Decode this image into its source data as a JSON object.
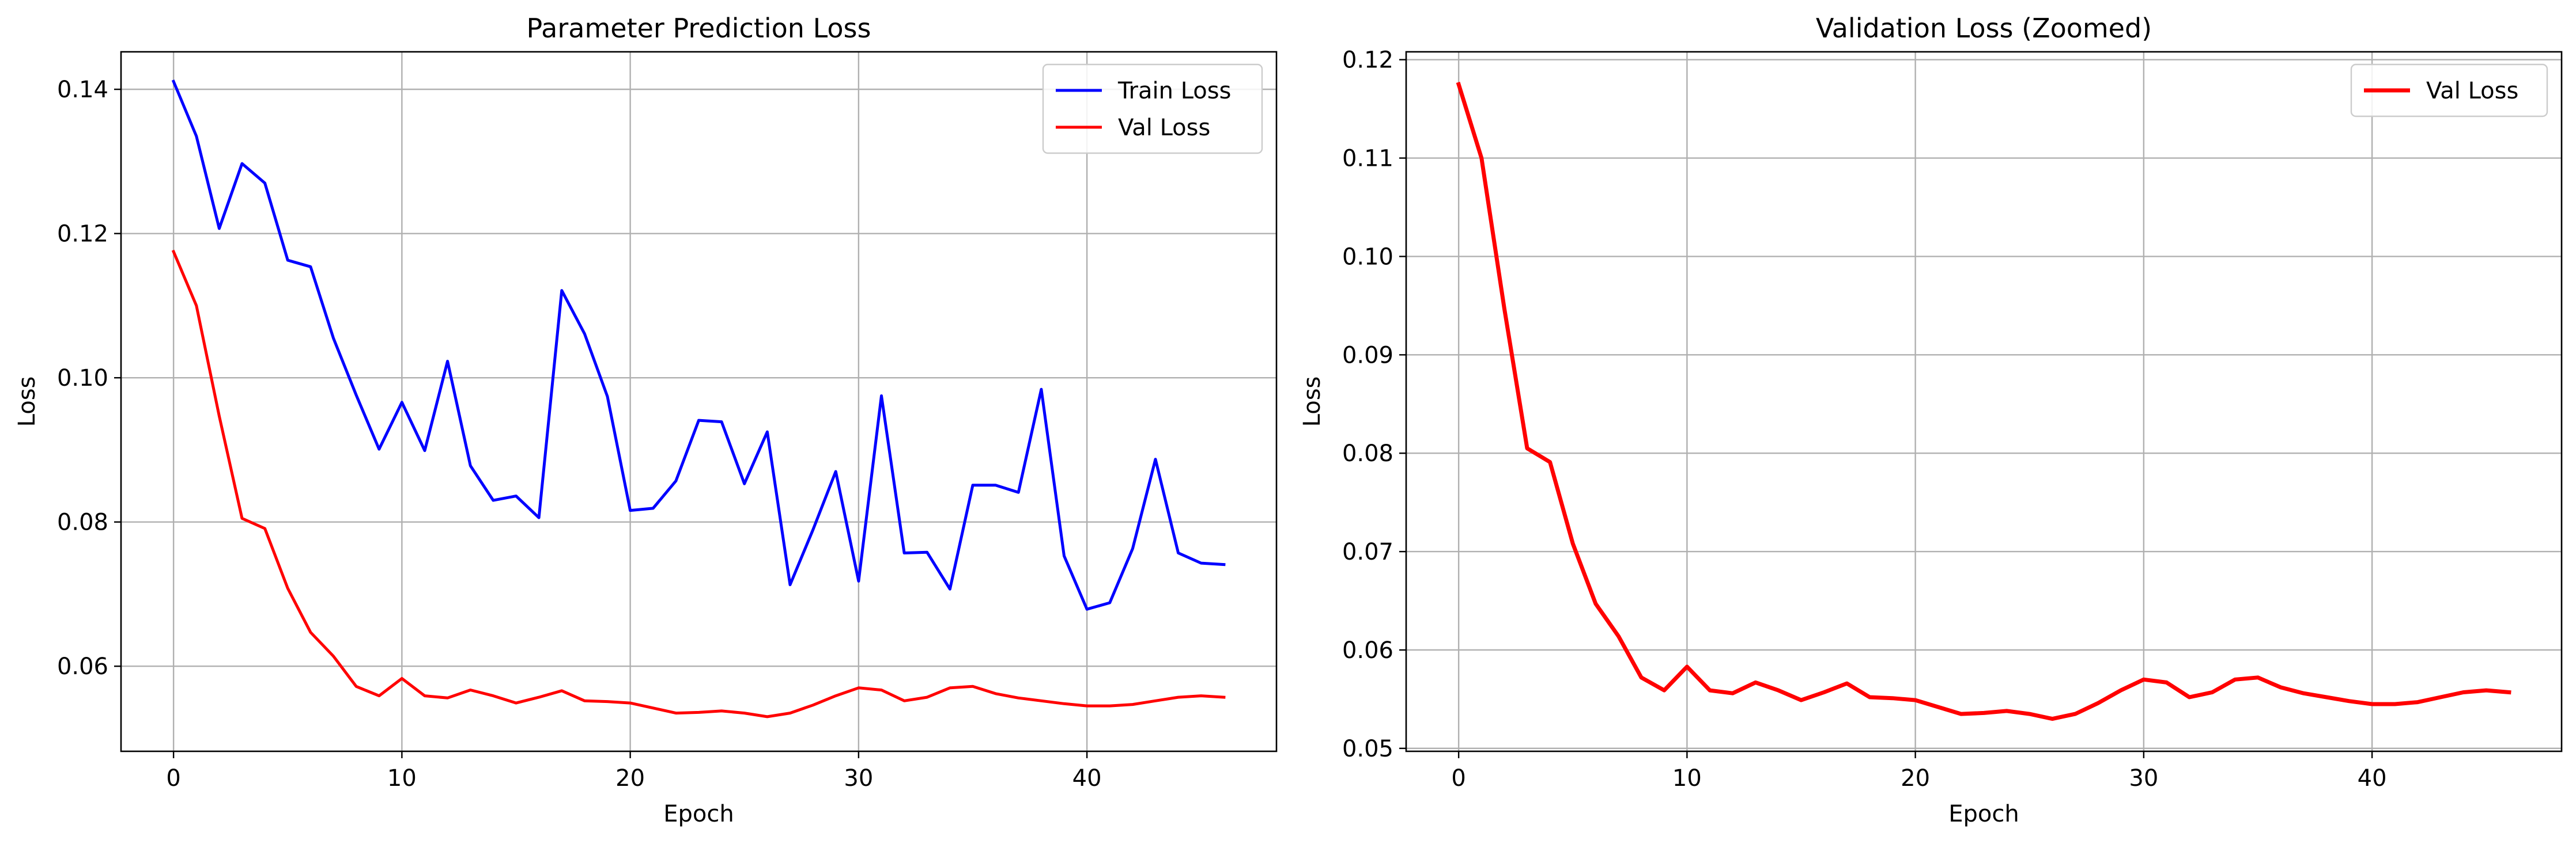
{
  "chart_data": [
    {
      "type": "line",
      "title": "Parameter Prediction Loss",
      "xlabel": "Epoch",
      "ylabel": "Loss",
      "xlim": [
        -2.3,
        48.3
      ],
      "ylim": [
        0.0482,
        0.1452
      ],
      "xticks": [
        0,
        10,
        20,
        30,
        40
      ],
      "yticks": [
        0.06,
        0.08,
        0.1,
        0.12,
        0.14
      ],
      "ytick_labels": [
        "0.06",
        "0.08",
        "0.10",
        "0.12",
        "0.14"
      ],
      "grid": true,
      "legend": "top-right",
      "x": [
        0,
        1,
        2,
        3,
        4,
        5,
        6,
        7,
        8,
        9,
        10,
        11,
        12,
        13,
        14,
        15,
        16,
        17,
        18,
        19,
        20,
        21,
        22,
        23,
        24,
        25,
        26,
        27,
        28,
        29,
        30,
        31,
        32,
        33,
        34,
        35,
        36,
        37,
        38,
        39,
        40,
        41,
        42,
        43,
        44,
        45,
        46
      ],
      "series": [
        {
          "name": "Train Loss",
          "color": "#0000ff",
          "values": [
            0.1411,
            0.1335,
            0.1207,
            0.1297,
            0.127,
            0.1163,
            0.1154,
            0.1055,
            0.0976,
            0.0901,
            0.0966,
            0.0899,
            0.1023,
            0.0878,
            0.083,
            0.0836,
            0.0806,
            0.1121,
            0.1061,
            0.0974,
            0.0816,
            0.0819,
            0.0857,
            0.0941,
            0.0939,
            0.0853,
            0.0925,
            0.0713,
            0.0789,
            0.087,
            0.0718,
            0.0975,
            0.0757,
            0.0758,
            0.0707,
            0.0851,
            0.0851,
            0.0841,
            0.0984,
            0.0753,
            0.0679,
            0.0688,
            0.0763,
            0.0887,
            0.0757,
            0.0743,
            0.0741
          ]
        },
        {
          "name": "Val Loss",
          "color": "#ff0000",
          "values": [
            0.1175,
            0.11,
            0.0947,
            0.0805,
            0.0791,
            0.0708,
            0.0647,
            0.0614,
            0.0572,
            0.0559,
            0.0583,
            0.0559,
            0.0556,
            0.0567,
            0.0559,
            0.0549,
            0.0557,
            0.0566,
            0.0552,
            0.0551,
            0.0549,
            0.0542,
            0.0535,
            0.0536,
            0.0538,
            0.0535,
            0.053,
            0.0535,
            0.0546,
            0.0559,
            0.057,
            0.0567,
            0.0552,
            0.0557,
            0.057,
            0.0572,
            0.0562,
            0.0556,
            0.0552,
            0.0548,
            0.0545,
            0.0545,
            0.0547,
            0.0552,
            0.0557,
            0.0559,
            0.0557
          ]
        }
      ]
    },
    {
      "type": "line",
      "title": "Validation Loss (Zoomed)",
      "xlabel": "Epoch",
      "ylabel": "Loss",
      "xlim": [
        -2.3,
        48.3
      ],
      "ylim": [
        0.0497,
        0.1208
      ],
      "xticks": [
        0,
        10,
        20,
        30,
        40
      ],
      "yticks": [
        0.05,
        0.06,
        0.07,
        0.08,
        0.09,
        0.1,
        0.11,
        0.12
      ],
      "ytick_labels": [
        "0.05",
        "0.06",
        "0.07",
        "0.08",
        "0.09",
        "0.10",
        "0.11",
        "0.12"
      ],
      "grid": true,
      "legend": "top-right",
      "x": [
        0,
        1,
        2,
        3,
        4,
        5,
        6,
        7,
        8,
        9,
        10,
        11,
        12,
        13,
        14,
        15,
        16,
        17,
        18,
        19,
        20,
        21,
        22,
        23,
        24,
        25,
        26,
        27,
        28,
        29,
        30,
        31,
        32,
        33,
        34,
        35,
        36,
        37,
        38,
        39,
        40,
        41,
        42,
        43,
        44,
        45,
        46
      ],
      "series": [
        {
          "name": "Val Loss",
          "color": "#ff0000",
          "values": [
            0.1175,
            0.11,
            0.0947,
            0.0805,
            0.0791,
            0.0708,
            0.0647,
            0.0614,
            0.0572,
            0.0559,
            0.0583,
            0.0559,
            0.0556,
            0.0567,
            0.0559,
            0.0549,
            0.0557,
            0.0566,
            0.0552,
            0.0551,
            0.0549,
            0.0542,
            0.0535,
            0.0536,
            0.0538,
            0.0535,
            0.053,
            0.0535,
            0.0546,
            0.0559,
            0.057,
            0.0567,
            0.0552,
            0.0557,
            0.057,
            0.0572,
            0.0562,
            0.0556,
            0.0552,
            0.0548,
            0.0545,
            0.0545,
            0.0547,
            0.0552,
            0.0557,
            0.0559,
            0.0557
          ]
        }
      ]
    }
  ]
}
